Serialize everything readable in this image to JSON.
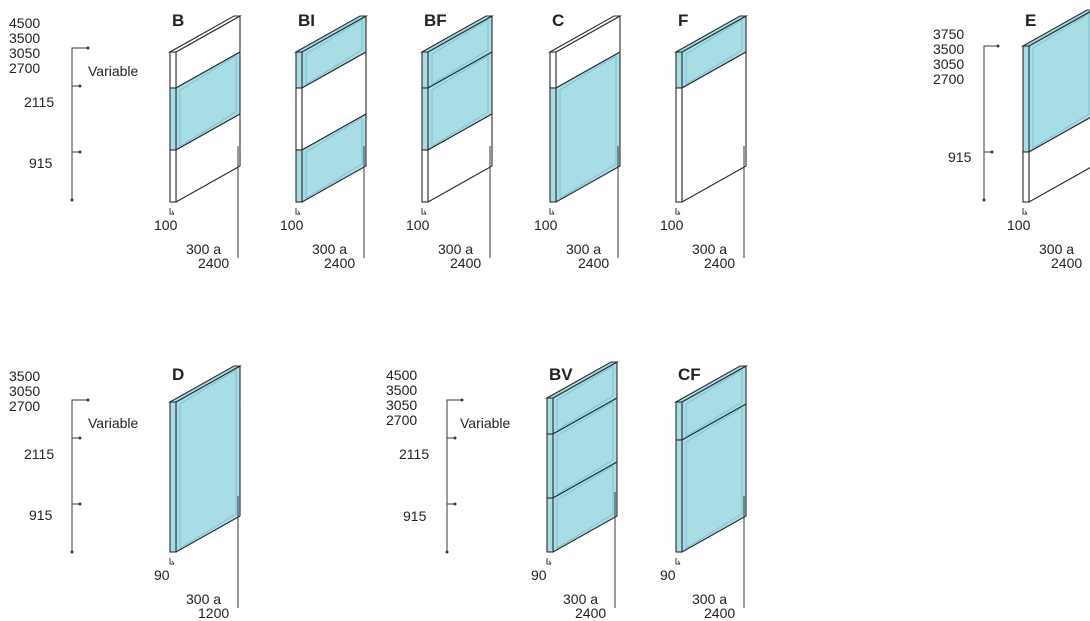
{
  "colors": {
    "glass": "#a8dde6",
    "glass_edge": "#78c3d2",
    "opaque": "#ffffff",
    "line": "#2b2b2b"
  },
  "units": [
    {
      "label": "B",
      "panels": [
        "white",
        "glass",
        "white"
      ],
      "bottom": "100",
      "width": [
        "300 a",
        "2400"
      ]
    },
    {
      "label": "BI",
      "panels": [
        "glass",
        "white",
        "glass"
      ],
      "bottom": "100",
      "width": [
        "300 a",
        "2400"
      ]
    },
    {
      "label": "BF",
      "panels": [
        "glass",
        "glass",
        "white"
      ],
      "bottom": "100",
      "width": [
        "300 a",
        "2400"
      ]
    },
    {
      "label": "C",
      "panels": [
        "white",
        "glass"
      ],
      "bottom": "100",
      "width": [
        "300 a",
        "2400"
      ]
    },
    {
      "label": "F",
      "panels": [
        "glass",
        "white"
      ],
      "bottom": "100",
      "width": [
        "300 a",
        "2400"
      ]
    },
    {
      "label": "E",
      "panels": [
        "glass",
        "white"
      ],
      "bottom": "100",
      "width": [
        "300 a",
        "2400"
      ]
    },
    {
      "label": "D",
      "panels": [
        "glass"
      ],
      "bottom": "90",
      "width": [
        "300 a",
        "1200"
      ]
    },
    {
      "label": "BV",
      "panels": [
        "glass",
        "glass",
        "glass"
      ],
      "bottom": "90",
      "width": [
        "300 a",
        "2400"
      ]
    },
    {
      "label": "CF",
      "panels": [
        "glass",
        "glass"
      ],
      "bottom": "90",
      "width": [
        "300 a",
        "2400"
      ]
    }
  ],
  "height_scales": [
    {
      "heights": [
        "4500",
        "3500",
        "3050",
        "2700"
      ],
      "variable": "Variable",
      "marks": [
        "2115",
        "915"
      ]
    },
    {
      "heights": [
        "3750",
        "3500",
        "3050",
        "2700"
      ],
      "variable": "",
      "marks": [
        "915"
      ]
    },
    {
      "heights": [
        "3500",
        "3050",
        "2700"
      ],
      "variable": "Variable",
      "marks": [
        "2115",
        "915"
      ]
    },
    {
      "heights": [
        "4500",
        "3500",
        "3050",
        "2700"
      ],
      "variable": "Variable",
      "marks": [
        "2115",
        "915"
      ]
    }
  ]
}
